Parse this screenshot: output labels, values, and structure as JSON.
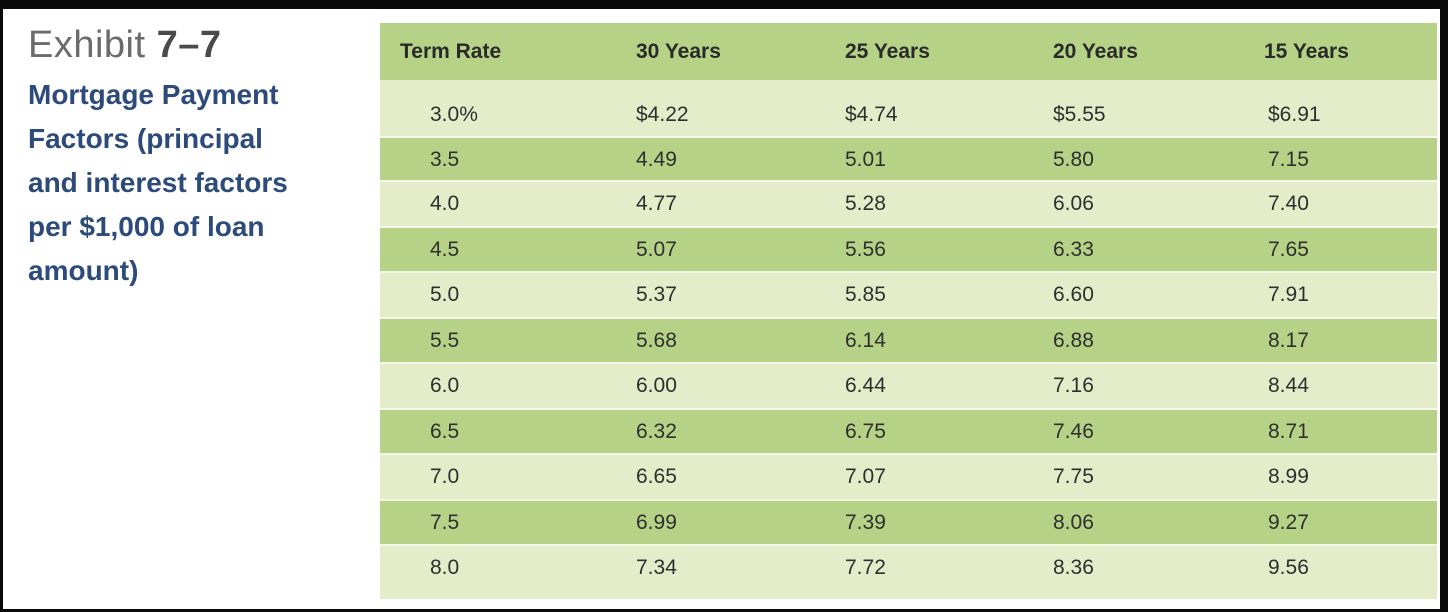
{
  "caption": {
    "exhibit_word": "Exhibit",
    "exhibit_number": "7–7",
    "title_lines": [
      "Mortgage Payment",
      "Factors (principal",
      "and interest factors",
      "per $1,000 of loan",
      "amount)"
    ]
  },
  "table": {
    "headers": [
      "Term Rate",
      "30 Years",
      "25 Years",
      "20 Years",
      "15 Years"
    ],
    "rows": [
      [
        "3.0%",
        "$4.22",
        "$4.74",
        "$5.55",
        "$6.91"
      ],
      [
        "3.5",
        "4.49",
        "5.01",
        "5.80",
        "7.15"
      ],
      [
        "4.0",
        "4.77",
        "5.28",
        "6.06",
        "7.40"
      ],
      [
        "4.5",
        "5.07",
        "5.56",
        "6.33",
        "7.65"
      ],
      [
        "5.0",
        "5.37",
        "5.85",
        "6.60",
        "7.91"
      ],
      [
        "5.5",
        "5.68",
        "6.14",
        "6.88",
        "8.17"
      ],
      [
        "6.0",
        "6.00",
        "6.44",
        "7.16",
        "8.44"
      ],
      [
        "6.5",
        "6.32",
        "6.75",
        "7.46",
        "8.71"
      ],
      [
        "7.0",
        "6.65",
        "7.07",
        "7.75",
        "8.99"
      ],
      [
        "7.5",
        "6.99",
        "7.39",
        "8.06",
        "9.27"
      ],
      [
        "8.0",
        "7.34",
        "7.72",
        "8.36",
        "9.56"
      ]
    ]
  },
  "colors": {
    "header_green": "#b5d287",
    "light_green": "#e4ecca",
    "title_blue": "#2c4a7a"
  }
}
